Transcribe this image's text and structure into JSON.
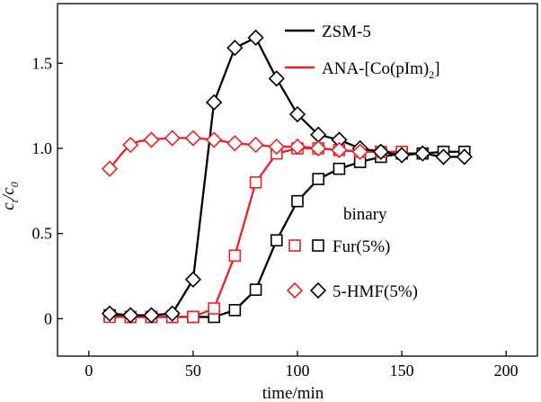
{
  "chart_data": {
    "type": "line",
    "xlabel": "time/min",
    "ylabel": {
      "main": "c",
      "sub1": "t",
      "sep": "/c",
      "sub2": "0"
    },
    "xlim": [
      -15,
      215
    ],
    "ylim": [
      -0.22,
      1.85
    ],
    "xticks": [
      0,
      50,
      100,
      150,
      200
    ],
    "yticks": [
      0,
      0.5,
      1.0,
      1.5
    ],
    "ytick_labels": [
      "0",
      "0.5",
      "1.0",
      "1.5"
    ],
    "colors": {
      "zsm": "#000000",
      "ana": "#e8212a"
    },
    "legend_top": {
      "zsm": "ZSM-5",
      "ana": {
        "prefix": "ANA-[Co(pIm)",
        "sub": "2",
        "suffix": "]"
      }
    },
    "legend_bottom": {
      "title": "binary",
      "fur": "Fur(5%)",
      "hmf": "5-HMF(5%)"
    },
    "series": [
      {
        "name": "ZSM-5 Fur(5%)",
        "color": "#000000",
        "marker": "square",
        "connect": "line",
        "x": [
          10,
          20,
          30,
          40,
          50,
          60,
          70,
          80,
          90,
          100,
          110,
          120,
          130,
          140,
          150,
          160,
          170,
          180
        ],
        "y": [
          0.02,
          0.01,
          0.01,
          0.01,
          0.01,
          0.01,
          0.05,
          0.17,
          0.46,
          0.69,
          0.82,
          0.88,
          0.92,
          0.95,
          0.97,
          0.97,
          0.98,
          0.98
        ]
      },
      {
        "name": "ANA-[Co(pIm)2] Fur(5%)",
        "color": "#e8212a",
        "marker": "square",
        "connect": "line",
        "x": [
          10,
          20,
          30,
          40,
          50,
          60,
          70,
          80,
          90,
          100,
          110,
          120,
          130,
          140,
          150
        ],
        "y": [
          0.01,
          0.01,
          0.01,
          0.01,
          0.01,
          0.06,
          0.37,
          0.8,
          0.97,
          1.0,
          1.0,
          0.99,
          0.98,
          0.98,
          0.98
        ]
      },
      {
        "name": "ZSM-5 5-HMF(5%)",
        "color": "#000000",
        "marker": "diamond",
        "connect": "line",
        "x": [
          10,
          20,
          30,
          40,
          50,
          60,
          70,
          80,
          90,
          100,
          110,
          120,
          130,
          140,
          150,
          160,
          170,
          180
        ],
        "y": [
          0.03,
          0.02,
          0.02,
          0.03,
          0.23,
          1.27,
          1.59,
          1.65,
          1.41,
          1.2,
          1.08,
          1.05,
          1.0,
          0.98,
          0.96,
          0.97,
          0.95,
          0.95
        ]
      },
      {
        "name": "ANA-[Co(pIm)2] 5-HMF(5%)",
        "color": "#e8212a",
        "marker": "diamond",
        "connect": "curve",
        "x": [
          10,
          20,
          30,
          40,
          50,
          60,
          70,
          80,
          90,
          100,
          110,
          120,
          130
        ],
        "y": [
          0.88,
          1.02,
          1.05,
          1.06,
          1.06,
          1.05,
          1.03,
          1.02,
          1.01,
          1.01,
          1.0,
          0.99,
          0.98
        ]
      }
    ]
  }
}
